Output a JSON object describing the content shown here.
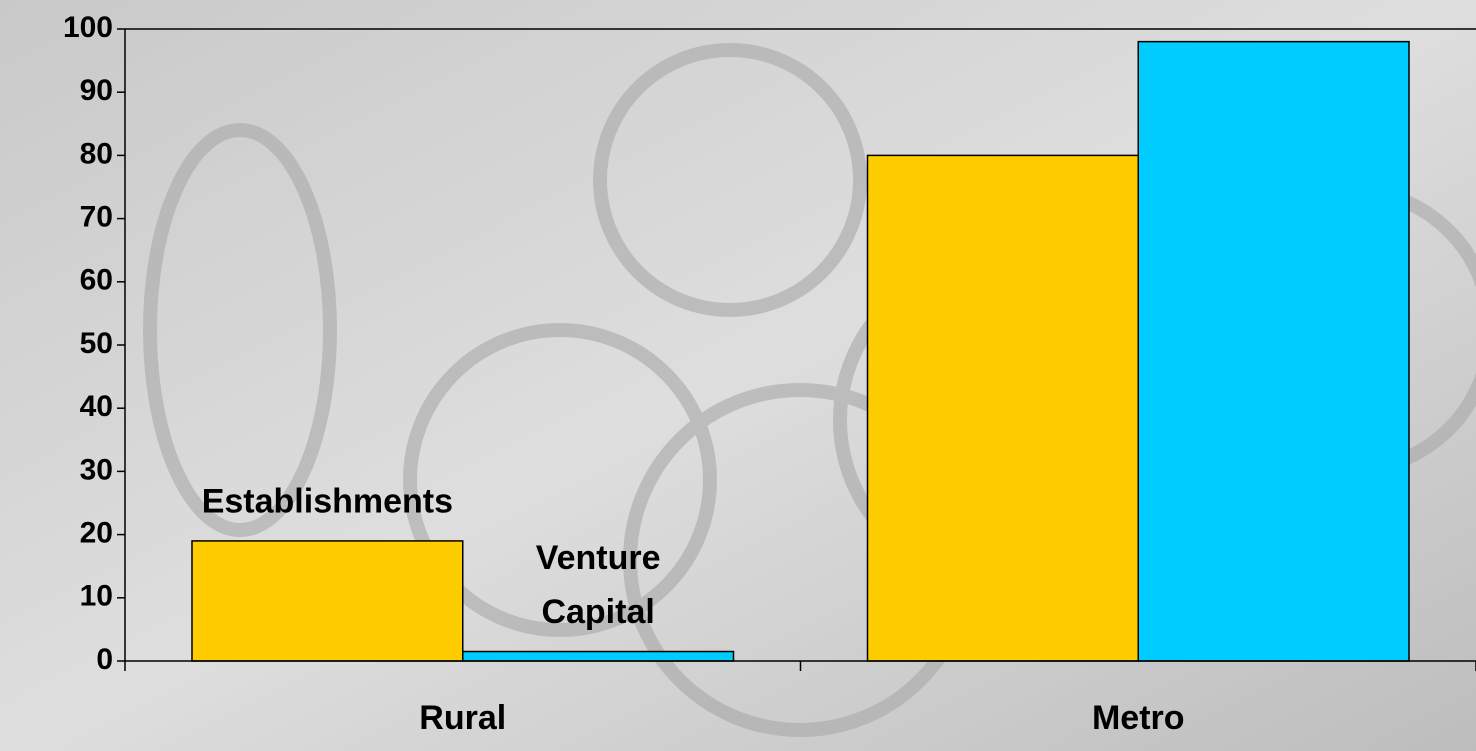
{
  "chart_data": {
    "type": "bar",
    "categories": [
      "Rural",
      "Metro"
    ],
    "series": [
      {
        "name": "Establishments",
        "color": "#ffcc00",
        "values": [
          19,
          80
        ]
      },
      {
        "name": "Venture Capital",
        "color": "#00ccff",
        "values": [
          1.5,
          98
        ]
      }
    ],
    "ylim": [
      0,
      100
    ],
    "yticks": [
      0,
      10,
      20,
      30,
      40,
      50,
      60,
      70,
      80,
      90,
      100
    ]
  }
}
